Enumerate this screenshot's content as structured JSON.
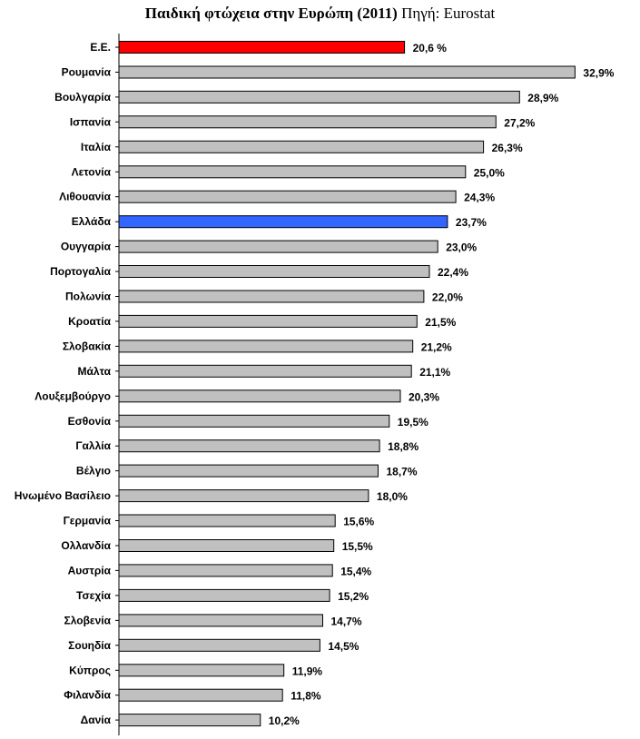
{
  "title": {
    "main": "Παιδική φτώχεια στην Ευρώπη (2011)",
    "source": "Πηγή: Eurostat"
  },
  "colors": {
    "default_bar": "#c0c0c0",
    "eu_bar": "#ff0000",
    "greece_bar": "#3366ff",
    "bar_stroke": "#000000",
    "axis": "#000000"
  },
  "chart_data": {
    "type": "bar",
    "orientation": "horizontal",
    "title": "Παιδική φτώχεια στην Ευρώπη (2011) Πηγή: Eurostat",
    "xlabel": "",
    "ylabel": "",
    "xlim": [
      0,
      35
    ],
    "grid": false,
    "categories": [
      "Ε.Ε.",
      "Ρουμανία",
      "Βουλγαρία",
      "Ισπανία",
      "Ιταλία",
      "Λετονία",
      "Λιθουανία",
      "Ελλάδα",
      "Ουγγαρία",
      "Πορτογαλία",
      "Πολωνία",
      "Κροατία",
      "Σλοβακία",
      "Μάλτα",
      "Λουξεμβούργο",
      "Εσθονία",
      "Γαλλία",
      "Βέλγιο",
      "Ηνωμένο Βασίλειο",
      "Γερμανία",
      "Ολλανδία",
      "Αυστρία",
      "Τσεχία",
      "Σλοβενία",
      "Σουηδία",
      "Κύπρος",
      "Φιλανδία",
      "Δανία"
    ],
    "values": [
      20.6,
      32.9,
      28.9,
      27.2,
      26.3,
      25.0,
      24.3,
      23.7,
      23.0,
      22.4,
      22.0,
      21.5,
      21.2,
      21.1,
      20.3,
      19.5,
      18.8,
      18.7,
      18.0,
      15.6,
      15.5,
      15.4,
      15.2,
      14.7,
      14.5,
      11.9,
      11.8,
      10.2
    ],
    "value_labels": [
      "20,6 %",
      "32,9%",
      "28,9%",
      "27,2%",
      "26,3%",
      "25,0%",
      "24,3%",
      "23,7%",
      "23,0%",
      "22,4%",
      "22,0%",
      "21,5%",
      "21,2%",
      "21,1%",
      "20,3%",
      "19,5%",
      "18,8%",
      "18,7%",
      "18,0%",
      "15,6%",
      "15,5%",
      "15,4%",
      "15,2%",
      "14,7%",
      "14,5%",
      "11,9%",
      "11,8%",
      "10,2%"
    ],
    "highlights": {
      "Ε.Ε.": "eu_bar",
      "Ελλάδα": "greece_bar"
    }
  }
}
